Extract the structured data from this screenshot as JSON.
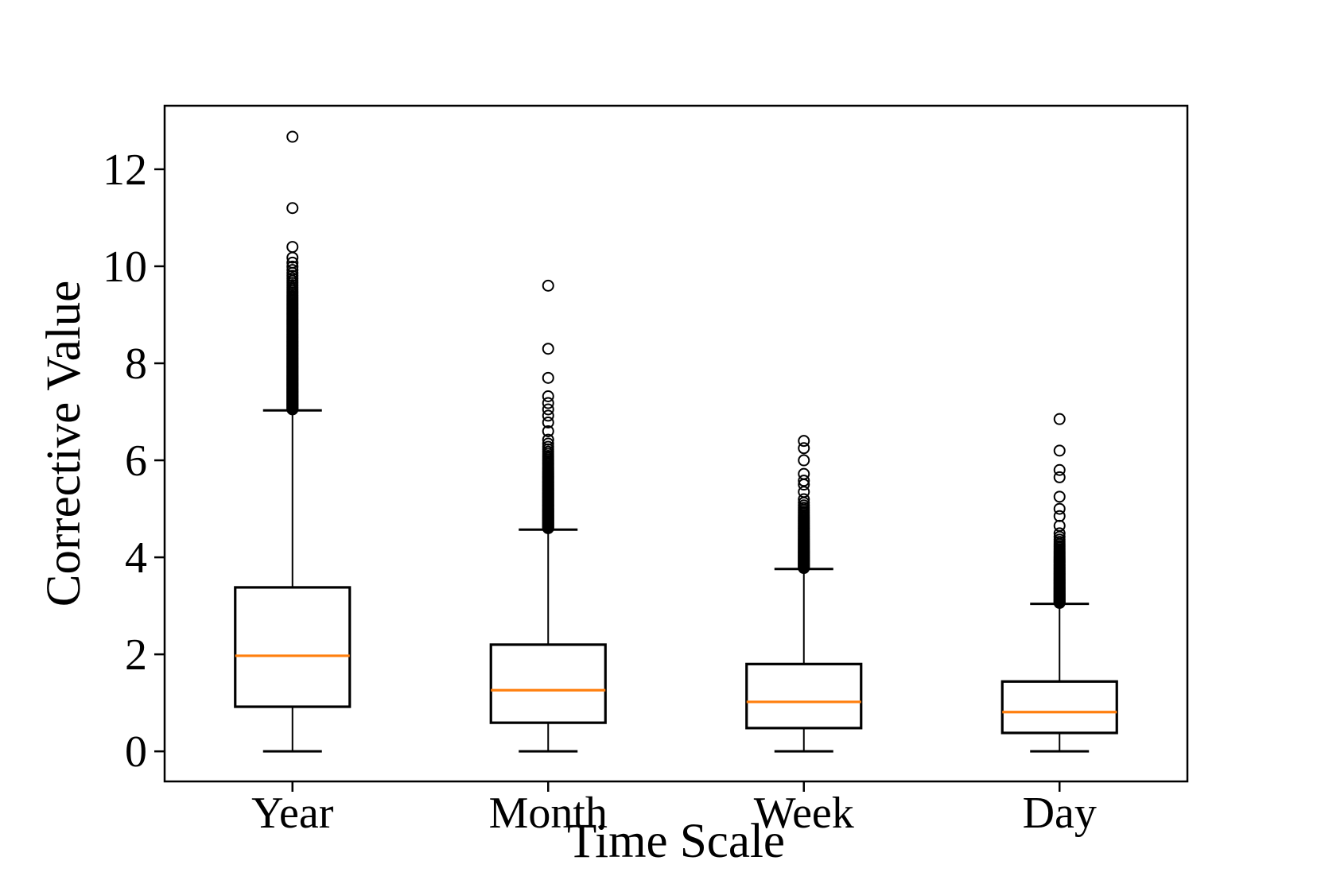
{
  "figure": {
    "background": "#ffffff",
    "frame_color": "#000000"
  },
  "chart_data": {
    "type": "boxplot",
    "title": "",
    "xlabel": "Time Scale",
    "ylabel": "Corrective Value",
    "categories": [
      "Year",
      "Month",
      "Week",
      "Day"
    ],
    "ylim": [
      -0.62,
      13.31
    ],
    "yticks": [
      0,
      2,
      4,
      6,
      8,
      10,
      12
    ],
    "ytick_labels": [
      "0",
      "2",
      "4",
      "6",
      "8",
      "10",
      "12"
    ],
    "grid": false,
    "legend": null,
    "colors": {
      "median": "#ff7f0e",
      "box": "#000000",
      "whisker": "#000000",
      "outlier": "#000000",
      "background": "#ffffff"
    },
    "boxes": [
      {
        "label": "Year",
        "whislo": 0.0,
        "q1": 0.92,
        "med": 1.97,
        "q3": 3.38,
        "whishi": 7.03,
        "outliers_dense": {
          "from": 7.05,
          "to": 10.4,
          "count": 140
        },
        "outliers_sparse": [
          11.2,
          12.67
        ]
      },
      {
        "label": "Month",
        "whislo": 0.0,
        "q1": 0.59,
        "med": 1.26,
        "q3": 2.2,
        "whishi": 4.57,
        "outliers_dense": {
          "from": 4.6,
          "to": 6.6,
          "count": 85
        },
        "outliers_sparse": [
          6.78,
          6.92,
          7.05,
          7.18,
          7.32,
          7.7,
          8.3,
          9.6
        ]
      },
      {
        "label": "Week",
        "whislo": 0.0,
        "q1": 0.48,
        "med": 1.02,
        "q3": 1.8,
        "whishi": 3.76,
        "outliers_dense": {
          "from": 3.78,
          "to": 5.35,
          "count": 70
        },
        "outliers_sparse": [
          5.5,
          5.58,
          5.72,
          6.0,
          6.25,
          6.4
        ]
      },
      {
        "label": "Day",
        "whislo": 0.0,
        "q1": 0.38,
        "med": 0.81,
        "q3": 1.44,
        "whishi": 3.04,
        "outliers_dense": {
          "from": 3.06,
          "to": 4.65,
          "count": 70
        },
        "outliers_sparse": [
          4.85,
          5.0,
          5.25,
          5.65,
          5.8,
          6.2,
          6.85
        ]
      }
    ]
  }
}
